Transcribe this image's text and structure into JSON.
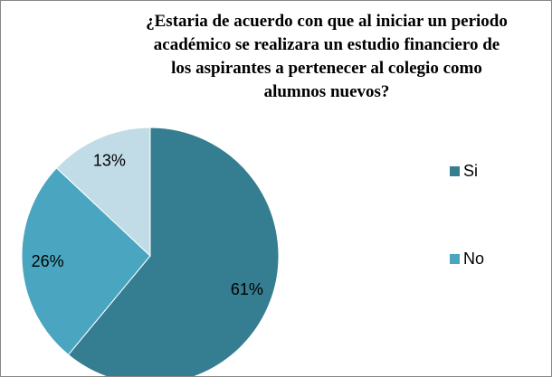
{
  "chart_data": {
    "type": "pie",
    "title": "¿Estaria de acuerdo con que al iniciar un periodo académico se realizara un estudio financiero de los aspirantes a pertenecer al colegio como alumnos nuevos?",
    "categories": [
      "Si",
      "No",
      null
    ],
    "values": [
      61,
      26,
      13
    ],
    "value_labels": [
      "61%",
      "26%",
      "13%"
    ],
    "colors": [
      "#357d91",
      "#4aa6c0",
      "#c1dce6"
    ]
  }
}
